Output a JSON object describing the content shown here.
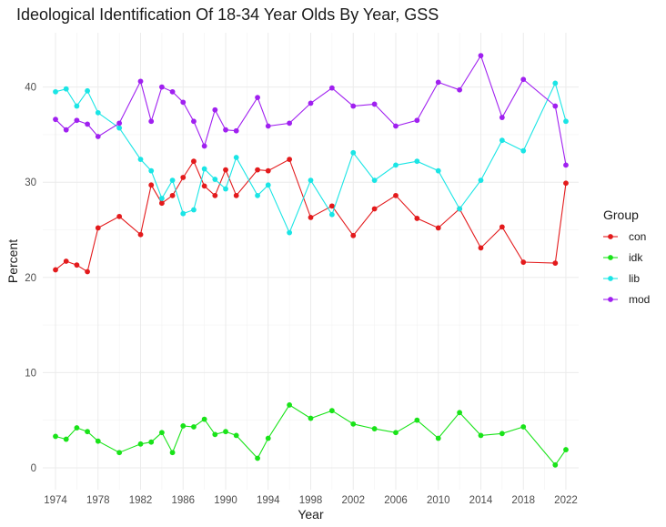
{
  "chart_data": {
    "type": "line",
    "title": "Ideological Identification Of 18-34 Year Olds By Year, GSS",
    "xlabel": "Year",
    "ylabel": "Percent",
    "xlim": [
      1972.8,
      2023.2
    ],
    "ylim": [
      -2.3,
      45.7
    ],
    "x_ticks": [
      1974,
      1978,
      1982,
      1986,
      1990,
      1994,
      1998,
      2002,
      2006,
      2010,
      2014,
      2018,
      2022
    ],
    "y_ticks": [
      0,
      10,
      20,
      30,
      40
    ],
    "grid": true,
    "legend": {
      "title": "Group",
      "position": "right"
    },
    "x": [
      1974,
      1975,
      1976,
      1977,
      1978,
      1980,
      1982,
      1983,
      1984,
      1985,
      1986,
      1987,
      1988,
      1989,
      1990,
      1991,
      1993,
      1994,
      1996,
      1998,
      2000,
      2002,
      2004,
      2006,
      2008,
      2010,
      2012,
      2014,
      2016,
      2018,
      2021,
      2022
    ],
    "series": [
      {
        "name": "con",
        "color": "#e31a1c",
        "values": [
          20.8,
          21.7,
          21.3,
          20.6,
          25.2,
          26.4,
          24.5,
          29.7,
          27.8,
          28.6,
          30.5,
          32.2,
          29.6,
          28.6,
          31.3,
          28.6,
          31.3,
          31.2,
          32.4,
          26.3,
          27.5,
          24.4,
          27.2,
          28.6,
          26.2,
          25.2,
          27.2,
          23.1,
          25.3,
          21.6,
          21.5,
          29.9
        ]
      },
      {
        "name": "idk",
        "color": "#19e319",
        "values": [
          3.3,
          3.0,
          4.2,
          3.8,
          2.8,
          1.6,
          2.5,
          2.7,
          3.7,
          1.6,
          4.4,
          4.3,
          5.1,
          3.5,
          3.8,
          3.4,
          1.0,
          3.1,
          6.6,
          5.2,
          6.0,
          4.6,
          4.1,
          3.7,
          5.0,
          3.1,
          5.8,
          3.4,
          3.6,
          4.3,
          0.3,
          1.9
        ]
      },
      {
        "name": "lib",
        "color": "#1ae5e5",
        "values": [
          39.5,
          39.8,
          38.0,
          39.6,
          37.3,
          35.7,
          32.4,
          31.2,
          28.3,
          30.2,
          26.7,
          27.1,
          31.4,
          30.3,
          29.3,
          32.6,
          28.6,
          29.7,
          24.7,
          30.2,
          26.6,
          33.1,
          30.2,
          31.8,
          32.2,
          31.2,
          27.2,
          30.2,
          34.4,
          33.3,
          40.4,
          36.4
        ]
      },
      {
        "name": "mod",
        "color": "#a020f0",
        "values": [
          36.6,
          35.5,
          36.5,
          36.1,
          34.8,
          36.2,
          40.6,
          36.4,
          40.0,
          39.5,
          38.4,
          36.4,
          33.8,
          37.6,
          35.5,
          35.4,
          38.9,
          35.9,
          36.2,
          38.3,
          39.9,
          38.0,
          38.2,
          35.9,
          36.5,
          40.5,
          39.7,
          43.3,
          36.8,
          40.8,
          38.0,
          31.8
        ]
      }
    ]
  }
}
